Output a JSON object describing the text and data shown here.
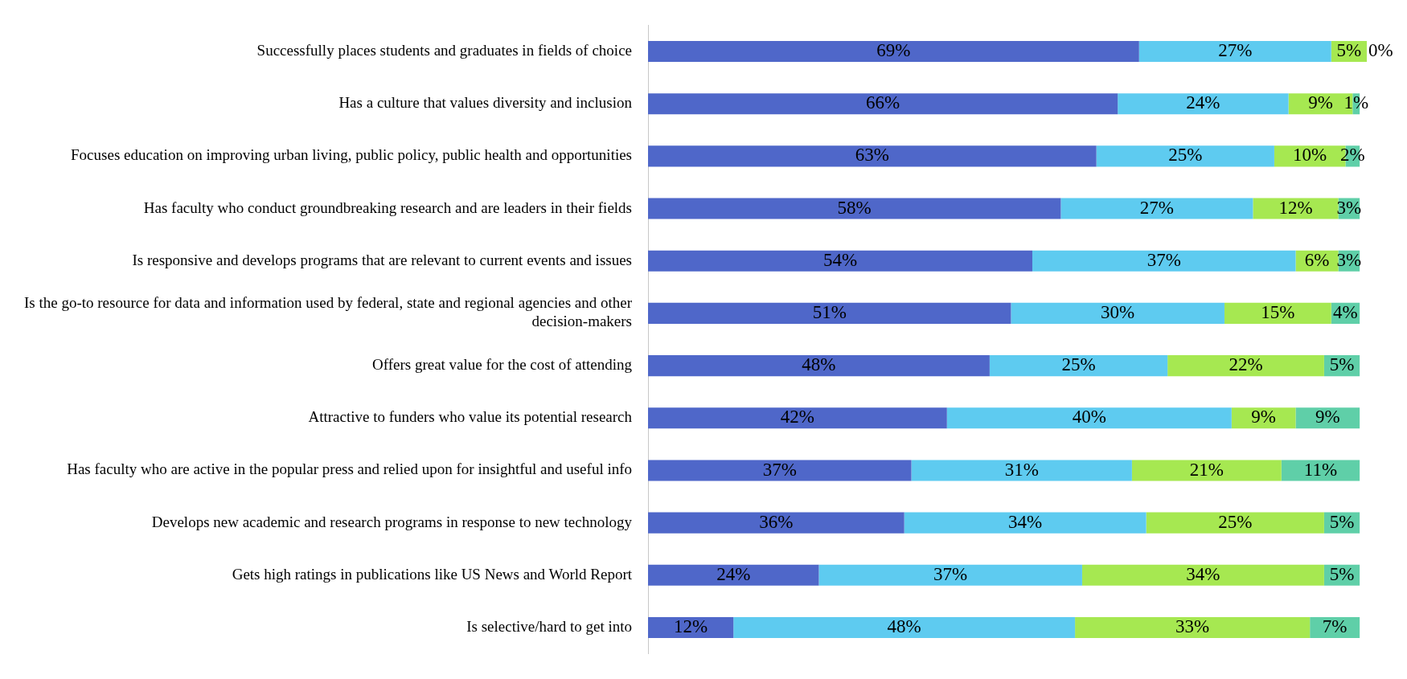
{
  "chart_data": {
    "type": "bar",
    "orientation": "horizontal",
    "stacked": true,
    "tick_labels": "y",
    "grid": false,
    "legend": false,
    "categories": [
      "Successfully places students and graduates in fields of choice",
      "Has a culture that values diversity and inclusion",
      "Focuses education on improving urban living, public policy, public health and opportunities",
      "Has faculty who conduct groundbreaking research and are leaders in their fields",
      "Is responsive and develops programs that are relevant to current events and issues",
      "Is the go-to resource for data and information used by federal, state and regional agencies and other decision-makers",
      "Offers great value for the cost of attending",
      "Attractive to funders who value its potential research",
      "Has faculty who are active in the popular press and relied upon for insightful and useful info",
      "Develops new academic and research programs in response to new technology",
      "Gets high ratings in publications like US News and World Report",
      "Is selective/hard to get into"
    ],
    "series": [
      {
        "color": "#4f67c9",
        "values": [
          69,
          66,
          63,
          58,
          54,
          51,
          48,
          42,
          37,
          36,
          24,
          12
        ],
        "value_labels": [
          "69%",
          "66%",
          "63%",
          "58%",
          "54%",
          "51%",
          "48%",
          "42%",
          "37%",
          "36%",
          "24%",
          "12%"
        ]
      },
      {
        "color": "#5ecbf0",
        "values": [
          27,
          24,
          25,
          27,
          37,
          30,
          25,
          40,
          31,
          34,
          37,
          48
        ],
        "value_labels": [
          "27%",
          "24%",
          "25%",
          "27%",
          "37%",
          "30%",
          "25%",
          "40%",
          "31%",
          "34%",
          "37%",
          "48%"
        ]
      },
      {
        "color": "#a6e851",
        "values": [
          5,
          9,
          10,
          12,
          6,
          15,
          22,
          9,
          21,
          25,
          34,
          33
        ],
        "value_labels": [
          "5%",
          "9%",
          "10%",
          "12%",
          "6%",
          "15%",
          "22%",
          "9%",
          "21%",
          "25%",
          "34%",
          "33%"
        ]
      },
      {
        "color": "#5fcfa8",
        "values": [
          0,
          1,
          2,
          3,
          3,
          4,
          5,
          9,
          11,
          5,
          5,
          7
        ],
        "value_labels": [
          "0%",
          "1%",
          "2%",
          "3%",
          "3%",
          "4%",
          "5%",
          "9%",
          "11%",
          "5%",
          "5%",
          "7%"
        ]
      }
    ]
  }
}
